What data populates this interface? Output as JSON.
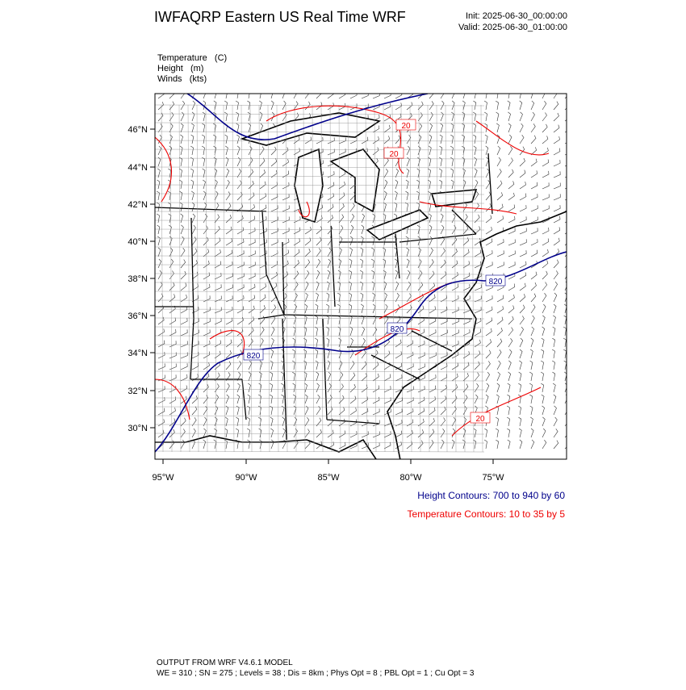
{
  "header": {
    "title": "IWFAQRP Eastern US Real Time WRF",
    "init": "Init: 2025-06-30_00:00:00",
    "valid": "Valid: 2025-06-30_01:00:00"
  },
  "fields": [
    "Temperature   (C)",
    "Height   (m)",
    "Winds   (kts)"
  ],
  "map": {
    "lat_labels": [
      "46°N",
      "44°N",
      "42°N",
      "40°N",
      "38°N",
      "36°N",
      "34°N",
      "32°N",
      "30°N"
    ],
    "lon_labels": [
      "95°W",
      "90°W",
      "85°W",
      "80°W",
      "75°W"
    ],
    "contour_labels": [
      "20",
      "20",
      "820",
      "820",
      "820",
      "20"
    ]
  },
  "legend": {
    "height": "Height Contours: 700 to 940 by 60",
    "temperature": "Temperature Contours: 10 to 35 by 5"
  },
  "footer": [
    "OUTPUT FROM WRF V4.6.1 MODEL",
    "WE = 310 ; SN = 275 ; Levels = 38 ; Dis = 8km ; Phys Opt = 8 ; PBL Opt = 1 ; Cu Opt = 3"
  ]
}
